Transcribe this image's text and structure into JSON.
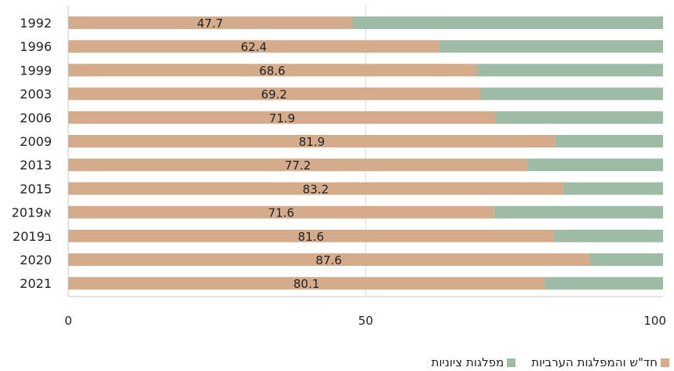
{
  "chart_data": {
    "type": "bar",
    "orientation": "horizontal",
    "stacked": true,
    "categories": [
      "1992",
      "1996",
      "1999",
      "2003",
      "2006",
      "2009",
      "2013",
      "2015",
      "א2019",
      "ב2019",
      "2020",
      "2021"
    ],
    "series": [
      {
        "name": "חד\"ש והמפלגות הערביות",
        "color": "#d4ac8c",
        "values": [
          47.7,
          62.4,
          68.6,
          69.2,
          71.9,
          81.9,
          77.2,
          83.2,
          71.6,
          81.6,
          87.6,
          80.1
        ]
      },
      {
        "name": "מפלגות ציוניות",
        "color": "#9ebba6",
        "values": [
          52.3,
          37.6,
          31.4,
          30.8,
          28.1,
          18.1,
          22.8,
          16.8,
          28.4,
          18.4,
          12.4,
          19.9
        ]
      }
    ],
    "data_labels": [
      "47.7",
      "62.4",
      "68.6",
      "69.2",
      "71.9",
      "81.9",
      "77.2",
      "83.2",
      "71.6",
      "81.6",
      "87.6",
      "80.1"
    ],
    "xlim": [
      0,
      100
    ],
    "xticks": [
      "0",
      "50",
      "100"
    ],
    "grid": true,
    "legend_position": "bottom-right"
  }
}
